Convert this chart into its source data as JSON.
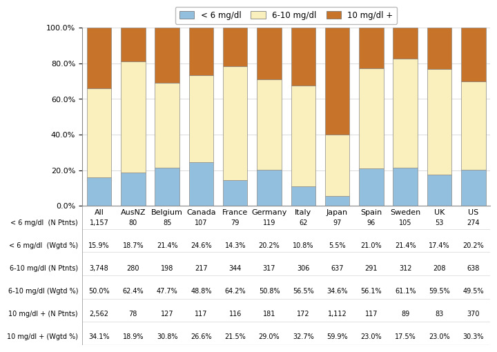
{
  "countries": [
    "All",
    "AusNZ",
    "Belgium",
    "Canada",
    "France",
    "Germany",
    "Italy",
    "Japan",
    "Spain",
    "Sweden",
    "UK",
    "US"
  ],
  "low_pct": [
    15.9,
    18.7,
    21.4,
    24.6,
    14.3,
    20.2,
    10.8,
    5.5,
    21.0,
    21.4,
    17.4,
    20.2
  ],
  "mid_pct": [
    50.0,
    62.4,
    47.7,
    48.8,
    64.2,
    50.8,
    56.5,
    34.6,
    56.1,
    61.1,
    59.5,
    49.5
  ],
  "high_pct": [
    34.1,
    18.9,
    30.8,
    26.6,
    21.5,
    29.0,
    32.7,
    59.9,
    23.0,
    17.5,
    23.0,
    30.3
  ],
  "color_low": "#92BFDD",
  "color_mid": "#FAF0BE",
  "color_high": "#C8732A",
  "legend_labels": [
    "< 6 mg/dl",
    "6-10 mg/dl",
    "10 mg/dl +"
  ],
  "table_row_labels": [
    "< 6 mg/dl  (N Ptnts)",
    "< 6 mg/dl  (Wgtd %)",
    "6-10 mg/dl (N Ptnts)",
    "6-10 mg/dl (Wgtd %)",
    "10 mg/dl + (N Ptnts)",
    "10 mg/dl + (Wgtd %)"
  ],
  "table_data": [
    [
      "1,157",
      "80",
      "85",
      "107",
      "79",
      "119",
      "62",
      "97",
      "96",
      "105",
      "53",
      "274"
    ],
    [
      "15.9%",
      "18.7%",
      "21.4%",
      "24.6%",
      "14.3%",
      "20.2%",
      "10.8%",
      "5.5%",
      "21.0%",
      "21.4%",
      "17.4%",
      "20.2%"
    ],
    [
      "3,748",
      "280",
      "198",
      "217",
      "344",
      "317",
      "306",
      "637",
      "291",
      "312",
      "208",
      "638"
    ],
    [
      "50.0%",
      "62.4%",
      "47.7%",
      "48.8%",
      "64.2%",
      "50.8%",
      "56.5%",
      "34.6%",
      "56.1%",
      "61.1%",
      "59.5%",
      "49.5%"
    ],
    [
      "2,562",
      "78",
      "127",
      "117",
      "116",
      "181",
      "172",
      "1,112",
      "117",
      "89",
      "83",
      "370"
    ],
    [
      "34.1%",
      "18.9%",
      "30.8%",
      "26.6%",
      "21.5%",
      "29.0%",
      "32.7%",
      "59.9%",
      "23.0%",
      "17.5%",
      "23.0%",
      "30.3%"
    ]
  ],
  "bar_edge_color": "#888888",
  "bar_edge_width": 0.5,
  "table_fontsize": 7.0,
  "chart_fontsize": 8.0
}
